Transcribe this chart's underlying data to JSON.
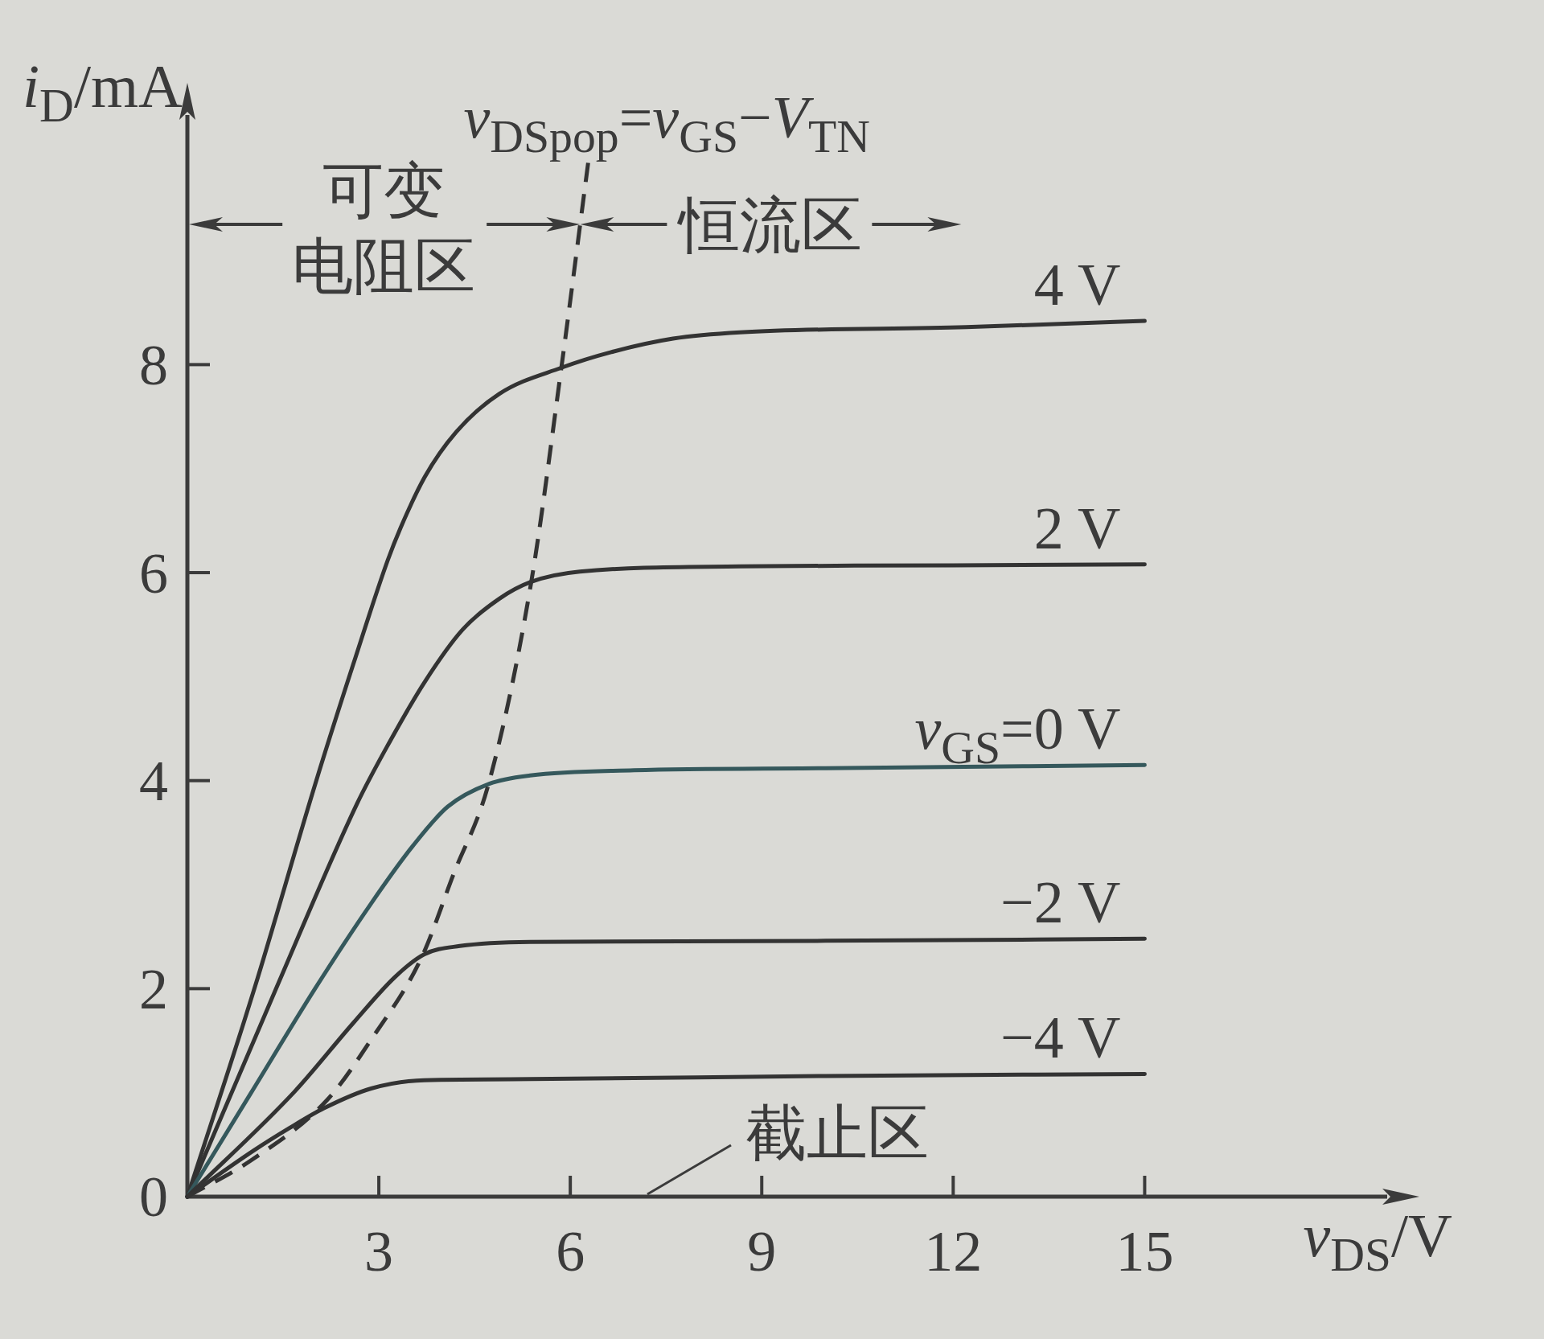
{
  "chart_data": {
    "type": "line",
    "xlabel": "v$_{DS}$/V",
    "ylabel": "i$_{D}$/mA",
    "xlim": [
      0,
      18.8
    ],
    "ylim": [
      0,
      10.4
    ],
    "xticks": [
      3,
      6,
      9,
      12,
      15
    ],
    "yticks": [
      0,
      2,
      4,
      6,
      8
    ],
    "series": [
      {
        "name": "4 V",
        "color": "#333333",
        "x": [
          0,
          1.05,
          2.02,
          2.6,
          3.14,
          3.34,
          3.72,
          4.21,
          4.89,
          5.86,
          6.64,
          7.61,
          8.66,
          12.2,
          15
        ],
        "values": [
          0,
          2.0,
          4.0,
          5.12,
          6.12,
          6.43,
          6.92,
          7.35,
          7.72,
          7.97,
          8.12,
          8.25,
          8.31,
          8.36,
          8.42
        ]
      },
      {
        "name": "2 V",
        "color": "#333333",
        "x": [
          0,
          1.39,
          2.66,
          3.14,
          3.72,
          4.31,
          4.89,
          5.38,
          6.15,
          8.66,
          12,
          15
        ],
        "values": [
          0,
          2.0,
          3.78,
          4.34,
          4.95,
          5.45,
          5.75,
          5.91,
          6.01,
          6.06,
          6.07,
          6.08
        ]
      },
      {
        "name": "v$_{GS}$=0 V",
        "color": "#35585c",
        "x": [
          0,
          1.0,
          2.0,
          2.88,
          3.53,
          4.08,
          4.73,
          5.37,
          7,
          10,
          15
        ],
        "values": [
          0,
          1.0,
          2.0,
          2.82,
          3.37,
          3.75,
          3.97,
          4.05,
          4.1,
          4.12,
          4.15
        ]
      },
      {
        "name": "−2 V",
        "color": "#333333",
        "x": [
          0,
          1.68,
          2.6,
          3.25,
          3.71,
          4.27,
          5.37,
          10,
          15
        ],
        "values": [
          0,
          1.01,
          1.67,
          2.11,
          2.33,
          2.41,
          2.45,
          2.46,
          2.48
        ]
      },
      {
        "name": "−4 V",
        "color": "#333333",
        "x": [
          0,
          1.03,
          1.6,
          2.14,
          2.88,
          3.71,
          5.37,
          10,
          15
        ],
        "values": [
          0,
          0.44,
          0.66,
          0.85,
          1.04,
          1.12,
          1.13,
          1.16,
          1.18
        ]
      },
      {
        "name": "v$_{DSpop}$=v$_{GS}$−V$_{TN}$",
        "color": "#333333",
        "line_style": "dashed",
        "x": [
          0,
          1.0,
          2.19,
          2.88,
          3.67,
          4.17,
          4.72,
          5.38,
          5.86,
          6.28
        ],
        "values": [
          0,
          0.35,
          0.93,
          1.51,
          2.3,
          3.1,
          3.97,
          5.88,
          7.97,
          9.94
        ]
      }
    ],
    "annotations": [
      "可变电阻区",
      "恒流区",
      "截止区"
    ]
  }
}
